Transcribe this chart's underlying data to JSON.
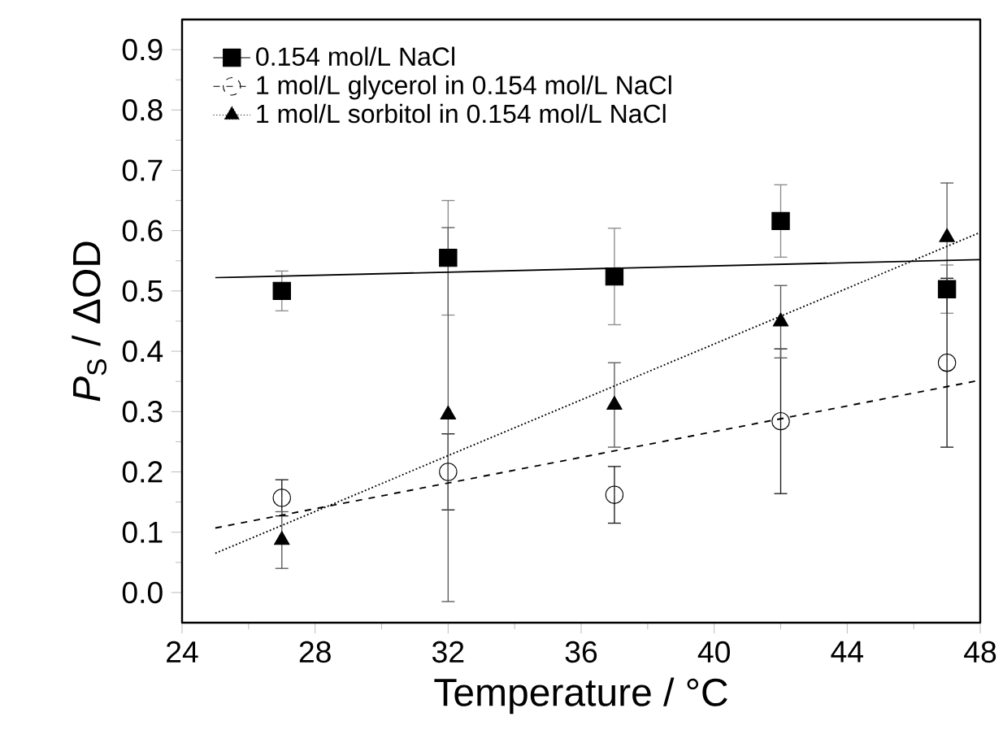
{
  "chart_data": {
    "type": "scatter",
    "xlabel": "Temperature / °C",
    "ylabel": "*P*$_{S}$ / ΔOD",
    "xlim": [
      24,
      48
    ],
    "xticks": [
      24,
      28,
      32,
      36,
      40,
      44,
      48
    ],
    "ylim": [
      -0.05,
      0.95
    ],
    "yticks": [
      {
        "value": 0,
        "label": "0.0"
      },
      0.1,
      0.2,
      0.3,
      0.4,
      0.5,
      0.6,
      0.7,
      0.8,
      0.9
    ],
    "legend": "top left",
    "series": [
      {
        "name": "0.154 mol/L NaCl",
        "color": "#000000",
        "marker": "square",
        "line_style": "solid",
        "x": [
          27,
          32,
          37,
          42,
          47
        ],
        "values": [
          0.5,
          0.555,
          0.524,
          0.616,
          0.503
        ],
        "errors": [
          0.033,
          0.095,
          0.08,
          0.06,
          0.04
        ]
      },
      {
        "name": "1 mol/L glycerol in 0.154 mol/L NaCl",
        "color": "#000000",
        "marker": "circle",
        "line_style": "dashed",
        "x": [
          27,
          32,
          37,
          42,
          47
        ],
        "values": [
          0.157,
          0.2,
          0.162,
          0.284,
          0.381
        ],
        "errors": [
          0.03,
          0.063,
          0.047,
          0.12,
          0.14
        ]
      },
      {
        "name": "1 mol/L sorbitol in 0.154 mol/L NaCl",
        "color": "#000000",
        "marker": "triangle",
        "line_style": "dotted",
        "x": [
          27,
          32,
          37,
          42,
          47
        ],
        "values": [
          0.087,
          0.295,
          0.311,
          0.449,
          0.589
        ],
        "errors": [
          0.047,
          0.31,
          0.07,
          0.06,
          0.09
        ]
      },
      {
        "type": "line",
        "color": "#000000",
        "line_style": "solid",
        "x": [
          25,
          48
        ],
        "values": [
          0.522,
          0.552
        ]
      },
      {
        "type": "line",
        "color": "#000000",
        "line_style": "dashed",
        "x": [
          25,
          48
        ],
        "values": [
          0.107,
          0.352
        ]
      },
      {
        "type": "line",
        "color": "#000000",
        "line_style": "dotted",
        "x": [
          25,
          48
        ],
        "values": [
          0.065,
          0.597
        ]
      }
    ]
  }
}
